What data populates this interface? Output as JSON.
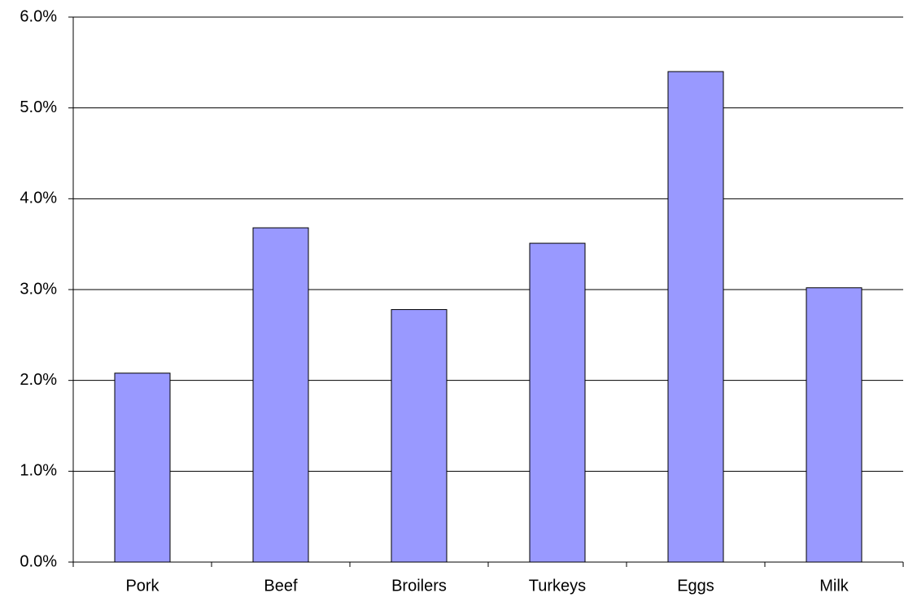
{
  "chart_data": {
    "type": "bar",
    "categories": [
      "Pork",
      "Beef",
      "Broilers",
      "Turkeys",
      "Eggs",
      "Milk"
    ],
    "values": [
      2.08,
      3.68,
      2.78,
      3.51,
      5.4,
      3.02
    ],
    "color": "#9999ff",
    "ylim": [
      0,
      6
    ],
    "yticks": [
      {
        "value": 0,
        "label": "0.0%"
      },
      {
        "value": 1,
        "label": "1.0%"
      },
      {
        "value": 2,
        "label": "2.0%"
      },
      {
        "value": 3,
        "label": "3.0%"
      },
      {
        "value": 4,
        "label": "4.0%"
      },
      {
        "value": 5,
        "label": "5.0%"
      },
      {
        "value": 6,
        "label": "6.0%"
      }
    ],
    "grid": true
  }
}
